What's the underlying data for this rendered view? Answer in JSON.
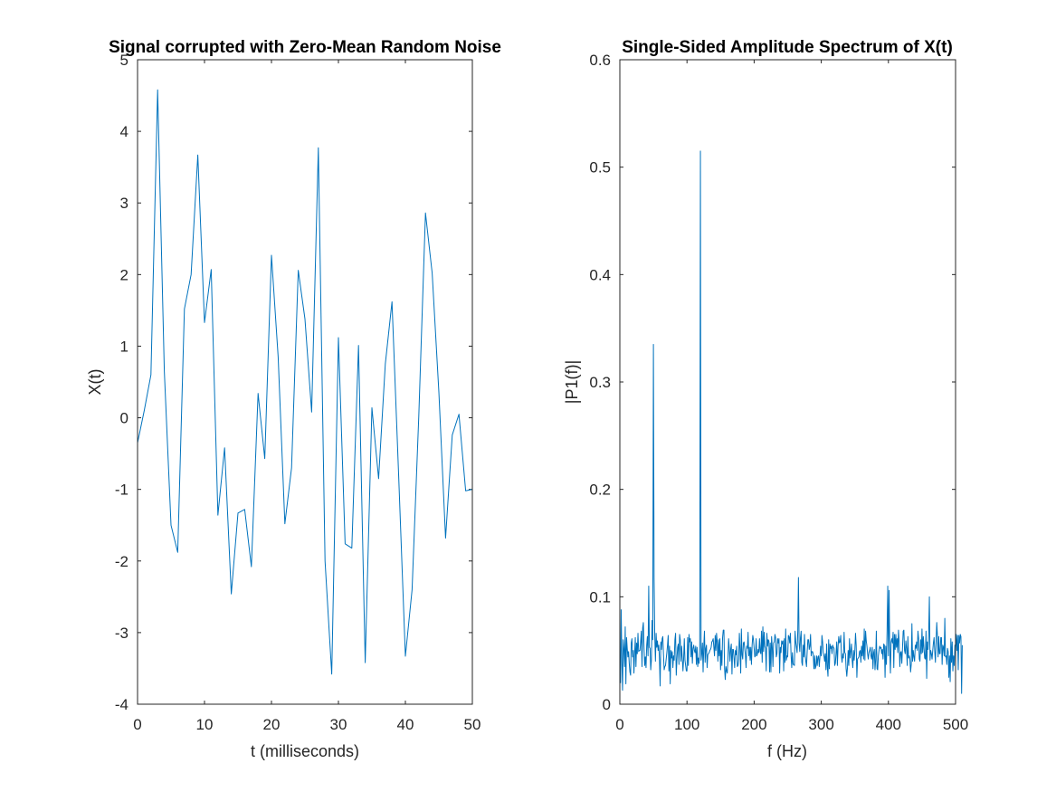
{
  "colors": {
    "series": "#0072BD",
    "axes": "#262626",
    "background": "#ffffff"
  },
  "chart_data": [
    {
      "type": "line",
      "title": "Signal corrupted with Zero-Mean Random Noise",
      "xlabel": "t (milliseconds)",
      "ylabel": "X(t)",
      "xlim": [
        0,
        50
      ],
      "ylim": [
        -4,
        5
      ],
      "xticks": [
        0,
        10,
        20,
        30,
        40,
        50
      ],
      "yticks": [
        -4,
        -3,
        -2,
        -1,
        0,
        1,
        2,
        3,
        4,
        5
      ],
      "grid": false,
      "series": [
        {
          "x": [
            0,
            1,
            2,
            3,
            4,
            5,
            6,
            7,
            8,
            9,
            10,
            11,
            12,
            13,
            14,
            15,
            16,
            17,
            18,
            19,
            20,
            21,
            22,
            23,
            24,
            25,
            26,
            27,
            28,
            29,
            30,
            31,
            32,
            33,
            34,
            35,
            36,
            37,
            38,
            39,
            40,
            41,
            42,
            43,
            44,
            45,
            46,
            47,
            48,
            49,
            50
          ],
          "values": [
            -0.35,
            0.1,
            0.6,
            4.58,
            0.65,
            -1.5,
            -1.88,
            1.52,
            2.0,
            3.67,
            1.33,
            2.07,
            -1.36,
            -0.42,
            -2.46,
            -1.33,
            -1.28,
            -2.08,
            0.34,
            -0.57,
            2.27,
            0.85,
            -1.48,
            -0.7,
            2.06,
            1.38,
            0.08,
            3.77,
            -2.0,
            -3.58,
            1.12,
            -1.76,
            -1.82,
            1.01,
            -3.42,
            0.14,
            -0.85,
            0.75,
            1.62,
            -0.82,
            -3.33,
            -2.4,
            0.02,
            2.86,
            2.02,
            0.36,
            -1.68,
            -0.24,
            0.05,
            -1.02,
            -1.0
          ]
        }
      ]
    },
    {
      "type": "line",
      "title": "Single-Sided Amplitude Spectrum of X(t)",
      "xlabel": "f (Hz)",
      "ylabel": "|P1(f)|",
      "xlim": [
        0,
        500
      ],
      "ylim": [
        0,
        0.6
      ],
      "xticks": [
        0,
        100,
        200,
        300,
        400,
        500
      ],
      "yticks": [
        0,
        0.1,
        0.2,
        0.3,
        0.4,
        0.5,
        0.6
      ],
      "grid": false,
      "series": [
        {
          "x_start": 0,
          "x_step": 1,
          "values": [
            0.024,
            0.02,
            0.088,
            0.04,
            0.013,
            0.06,
            0.052,
            0.035,
            0.072,
            0.019,
            0.062,
            0.052,
            0.044,
            0.049,
            0.038,
            0.03,
            0.027,
            0.057,
            0.061,
            0.044,
            0.05,
            0.029,
            0.047,
            0.062,
            0.035,
            0.057,
            0.047,
            0.066,
            0.049,
            0.05,
            0.05,
            0.059,
            0.068,
            0.035,
            0.071,
            0.076,
            0.053,
            0.036,
            0.044,
            0.034,
            0.055,
            0.063,
            0.045,
            0.11,
            0.053,
            0.052,
            0.032,
            0.041,
            0.078,
            0.06,
            0.335,
            0.118,
            0.064,
            0.04,
            0.066,
            0.053,
            0.059,
            0.05,
            0.055,
            0.042,
            0.017,
            0.058,
            0.051,
            0.061,
            0.063,
            0.046,
            0.032,
            0.035,
            0.036,
            0.042,
            0.048,
            0.055,
            0.064,
            0.031,
            0.054,
            0.019,
            0.05,
            0.043,
            0.049,
            0.034,
            0.045,
            0.041,
            0.06,
            0.066,
            0.027,
            0.041,
            0.053,
            0.056,
            0.037,
            0.065,
            0.06,
            0.04,
            0.054,
            0.043,
            0.031,
            0.042,
            0.061,
            0.041,
            0.036,
            0.031,
            0.031,
            0.062,
            0.036,
            0.065,
            0.058,
            0.061,
            0.044,
            0.058,
            0.038,
            0.052,
            0.055,
            0.05,
            0.048,
            0.054,
            0.037,
            0.053,
            0.035,
            0.043,
            0.038,
            0.054,
            0.515,
            0.041,
            0.047,
            0.057,
            0.03,
            0.054,
            0.068,
            0.039,
            0.052,
            0.055,
            0.034,
            0.046,
            0.047,
            0.048,
            0.05,
            0.051,
            0.053,
            0.058,
            0.059,
            0.061,
            0.053,
            0.045,
            0.064,
            0.05,
            0.066,
            0.058,
            0.04,
            0.06,
            0.045,
            0.061,
            0.032,
            0.05,
            0.036,
            0.062,
            0.069,
            0.069,
            0.033,
            0.023,
            0.035,
            0.031,
            0.029,
            0.042,
            0.061,
            0.052,
            0.04,
            0.051,
            0.056,
            0.028,
            0.051,
            0.051,
            0.043,
            0.034,
            0.05,
            0.046,
            0.054,
            0.035,
            0.036,
            0.042,
            0.066,
            0.051,
            0.029,
            0.07,
            0.046,
            0.042,
            0.057,
            0.058,
            0.052,
            0.046,
            0.034,
            0.054,
            0.052,
            0.067,
            0.045,
            0.053,
            0.041,
            0.053,
            0.037,
            0.055,
            0.064,
            0.06,
            0.052,
            0.044,
            0.045,
            0.061,
            0.045,
            0.047,
            0.051,
            0.048,
            0.061,
            0.049,
            0.047,
            0.068,
            0.039,
            0.072,
            0.049,
            0.067,
            0.054,
            0.052,
            0.031,
            0.066,
            0.054,
            0.06,
            0.059,
            0.03,
            0.057,
            0.03,
            0.063,
            0.053,
            0.035,
            0.057,
            0.058,
            0.065,
            0.062,
            0.044,
            0.047,
            0.061,
            0.057,
            0.061,
            0.029,
            0.053,
            0.048,
            0.059,
            0.056,
            0.059,
            0.031,
            0.061,
            0.039,
            0.07,
            0.041,
            0.045,
            0.044,
            0.064,
            0.063,
            0.057,
            0.066,
            0.046,
            0.034,
            0.048,
            0.037,
            0.037,
            0.036,
            0.068,
            0.058,
            0.053,
            0.048,
            0.068,
            0.118,
            0.057,
            0.049,
            0.062,
            0.068,
            0.039,
            0.036,
            0.055,
            0.044,
            0.065,
            0.046,
            0.04,
            0.035,
            0.049,
            0.06,
            0.06,
            0.051,
            0.054,
            0.065,
            0.045,
            0.049,
            0.049,
            0.047,
            0.033,
            0.045,
            0.033,
            0.035,
            0.045,
            0.036,
            0.044,
            0.045,
            0.035,
            0.044,
            0.054,
            0.045,
            0.064,
            0.058,
            0.048,
            0.045,
            0.04,
            0.047,
            0.032,
            0.056,
            0.034,
            0.026,
            0.06,
            0.033,
            0.056,
            0.052,
            0.054,
            0.047,
            0.055,
            0.053,
            0.052,
            0.036,
            0.038,
            0.047,
            0.058,
            0.036,
            0.054,
            0.063,
            0.057,
            0.058,
            0.064,
            0.045,
            0.039,
            0.047,
            0.043,
            0.067,
            0.048,
            0.047,
            0.033,
            0.026,
            0.034,
            0.05,
            0.036,
            0.061,
            0.043,
            0.049,
            0.056,
            0.041,
            0.034,
            0.05,
            0.041,
            0.05,
            0.066,
            0.055,
            0.025,
            0.042,
            0.043,
            0.044,
            0.049,
            0.05,
            0.039,
            0.054,
            0.045,
            0.059,
            0.042,
            0.07,
            0.041,
            0.068,
            0.059,
            0.054,
            0.047,
            0.042,
            0.048,
            0.05,
            0.053,
            0.045,
            0.042,
            0.053,
            0.033,
            0.048,
            0.051,
            0.032,
            0.041,
            0.068,
            0.033,
            0.032,
            0.045,
            0.05,
            0.054,
            0.052,
            0.053,
            0.047,
            0.051,
            0.042,
            0.056,
            0.055,
            0.025,
            0.054,
            0.037,
            0.068,
            0.11,
            0.045,
            0.106,
            0.051,
            0.029,
            0.058,
            0.061,
            0.057,
            0.067,
            0.034,
            0.065,
            0.051,
            0.065,
            0.053,
            0.061,
            0.048,
            0.069,
            0.058,
            0.035,
            0.048,
            0.049,
            0.038,
            0.053,
            0.068,
            0.069,
            0.05,
            0.047,
            0.059,
            0.052,
            0.036,
            0.063,
            0.043,
            0.045,
            0.042,
            0.03,
            0.037,
            0.075,
            0.04,
            0.05,
            0.044,
            0.04,
            0.055,
            0.052,
            0.058,
            0.05,
            0.068,
            0.061,
            0.042,
            0.04,
            0.06,
            0.047,
            0.07,
            0.048,
            0.063,
            0.052,
            0.043,
            0.042,
            0.068,
            0.024,
            0.058,
            0.051,
            0.067,
            0.1,
            0.041,
            0.05,
            0.047,
            0.042,
            0.05,
            0.057,
            0.062,
            0.049,
            0.039,
            0.058,
            0.076,
            0.063,
            0.044,
            0.063,
            0.047,
            0.047,
            0.062,
            0.062,
            0.037,
            0.055,
            0.053,
            0.045,
            0.08,
            0.044,
            0.045,
            0.037,
            0.052,
            0.049,
            0.025,
            0.045,
            0.021,
            0.061,
            0.039,
            0.058,
            0.031,
            0.045,
            0.036,
            0.055,
            0.053,
            0.065,
            0.05,
            0.064,
            0.032,
            0.064,
            0.057,
            0.065,
            0.063,
            0.01,
            0.055
          ]
        }
      ]
    }
  ]
}
